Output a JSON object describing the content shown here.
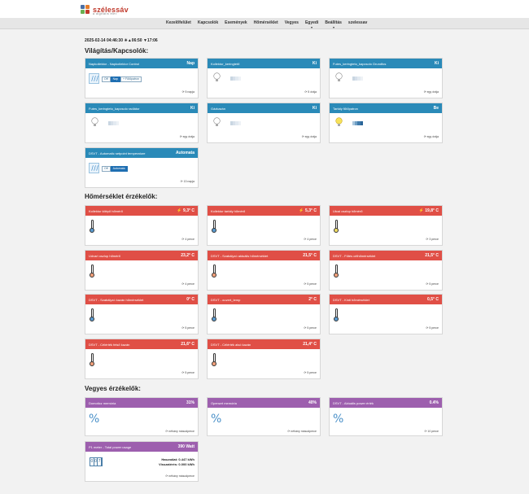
{
  "brand": {
    "name": "szélessáv",
    "tagline": "a digitális élet"
  },
  "nav": [
    {
      "label": "Kezelőfelület"
    },
    {
      "label": "Kapcsolók"
    },
    {
      "label": "Események"
    },
    {
      "label": "Hőmérséklet"
    },
    {
      "label": "Vegyes"
    },
    {
      "label": "Egyedi"
    },
    {
      "label": "Beállítás"
    },
    {
      "label": "szelessav"
    }
  ],
  "timeline": "2025-02-14 04:46:30 ☀▲06:50 ▼17:06",
  "sections": {
    "lights": "Világítás/Kapcsolók:",
    "temps": "Hőmérséklet érzékelők:",
    "misc": "Vegyes érzékelők:"
  },
  "switches": [
    {
      "title": "Napkollektor - Napkollektor Control",
      "value": "Nap",
      "ago": "5 napja",
      "kind": "mode",
      "buttons": [
        "Off",
        "Nap",
        "+ Fűtőpatron"
      ],
      "active": 1
    },
    {
      "title": "Kollektor_keringtető",
      "value": "Ki",
      "ago": "5 órája",
      "kind": "bulb",
      "on": false
    },
    {
      "title": "Futes_keringteto_kapcsolo Grundfos",
      "value": "Ki",
      "ago": "egy órája",
      "kind": "bulb",
      "on": false
    },
    {
      "title": "Futes_keringteto_kapcsolo radiátor",
      "value": "Ki",
      "ago": "egy órája",
      "kind": "bulb",
      "on": false
    },
    {
      "title": "Gázkazán",
      "value": "Ki",
      "ago": "egy órája",
      "kind": "bulb",
      "on": false
    },
    {
      "title": "Tartály fűtőpatron",
      "value": "Be",
      "ago": "egy órája",
      "kind": "bulb",
      "on": true
    },
    {
      "title": "DSVT - Automatic setpoint temperature",
      "value": "Automata",
      "ago": "13 napja",
      "kind": "mode",
      "buttons": [
        "Off",
        "Automata"
      ],
      "active": 1
    }
  ],
  "temperatures": [
    {
      "title": "Kollektor kilépő hőmérő",
      "value": "9,3° C",
      "trend": "⚡",
      "ago": "4 perce",
      "color": "#5a9bd0"
    },
    {
      "title": "Kollektor tartály hőmérő",
      "value": "5,3° C",
      "trend": "⚡",
      "ago": "4 perce",
      "color": "#5a9bd0"
    },
    {
      "title": "Utcai oszlop hőmérő",
      "value": "19,8° C",
      "trend": "⚡",
      "ago": "3 perce",
      "color": "#f1dd63"
    },
    {
      "title": "Udvari oszlop hőmérő",
      "value": "23,2° C",
      "trend": "",
      "ago": "4 perce",
      "color": "#f2a07a"
    },
    {
      "title": "DSVT - Szabályzó aktuális hőmérséklet",
      "value": "21,5° C",
      "trend": "",
      "ago": "5 perce",
      "color": "#f2a07a"
    },
    {
      "title": "DSVT - Fűtés célhőmérséklet",
      "value": "21,5° C",
      "trend": "",
      "ago": "5 perce",
      "color": "#f2a07a"
    },
    {
      "title": "DSVT - Szabályzó kazán hőmérséklet",
      "value": "0° C",
      "trend": "",
      "ago": "5 perce",
      "color": "#5a9bd0"
    },
    {
      "title": "DSVT - ouvert_temp",
      "value": "2° C",
      "trend": "",
      "ago": "5 perce",
      "color": "#5a9bd0"
    },
    {
      "title": "DSVT - Kinti hőmérséklet",
      "value": "0,5° C",
      "trend": "",
      "ago": "5 perce",
      "color": "#5a9bd0"
    },
    {
      "title": "DSVT - Célérték felső kazán",
      "value": "21,6° C",
      "trend": "",
      "ago": "5 perce",
      "color": "#f2a07a"
    },
    {
      "title": "DSVT - Célérték alsó kazán",
      "value": "21,4° C",
      "trend": "",
      "ago": "5 perce",
      "color": "#f2a07a"
    }
  ],
  "misc": [
    {
      "title": "Domoticz memória",
      "value": "31%",
      "ago": "néhány másodperce",
      "kind": "pct"
    },
    {
      "title": "Openwrt memória",
      "value": "40%",
      "ago": "néhány másodperce",
      "kind": "pct"
    },
    {
      "title": "DSVT - Aktuális power érték",
      "value": "0.4%",
      "ago": "10 perce",
      "kind": "pct"
    },
    {
      "title": "P1 meter - Total power usage",
      "value": "390 Watt",
      "ago": "néhány másodperce",
      "kind": "meter",
      "digits": [
        "0",
        "0",
        "7"
      ],
      "usage": "Használat: 0.447 kWh",
      "return": "Visszatérés: 0.000 kWh"
    }
  ],
  "colors": {
    "switch_header": "#2a8ab8",
    "temp_header": "#e04f46",
    "misc_header": "#9d5fae",
    "brand": "#c0392b"
  }
}
